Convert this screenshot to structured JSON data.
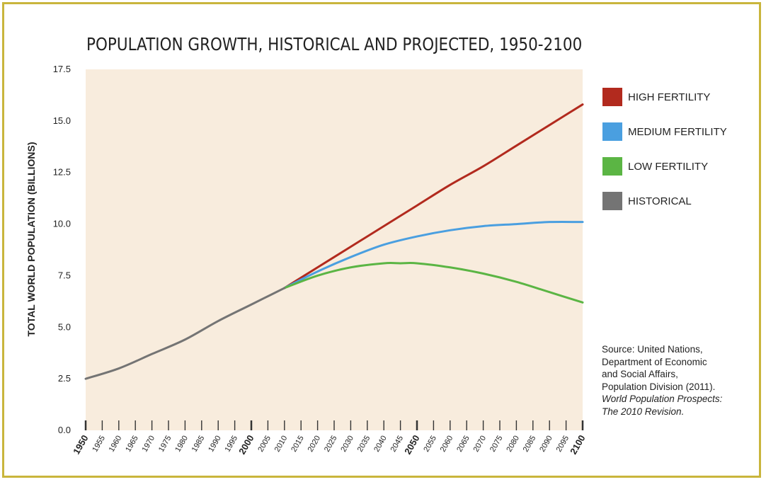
{
  "chart_data": {
    "type": "line",
    "title": "POPULATION GROWTH, HISTORICAL AND PROJECTED, 1950-2100",
    "ylabel": "TOTAL WORLD POPULATION (BILLIONS)",
    "xlabel": "",
    "xlim": [
      1950,
      2100
    ],
    "ylim": [
      0,
      17.5
    ],
    "yticks": [
      "0.0",
      "2.5",
      "5.0",
      "7.5",
      "10.0",
      "12.5",
      "15.0",
      "17.5"
    ],
    "xticks": [
      "1950",
      "1955",
      "1960",
      "1965",
      "1970",
      "1975",
      "1980",
      "1985",
      "1990",
      "1995",
      "2000",
      "2005",
      "2010",
      "2015",
      "2020",
      "2025",
      "2030",
      "2035",
      "2040",
      "2045",
      "2050",
      "2055",
      "2060",
      "2065",
      "2070",
      "2075",
      "2080",
      "2085",
      "2090",
      "2095",
      "2100"
    ],
    "bold_xticks": [
      "1950",
      "2000",
      "2050",
      "2100"
    ],
    "legend_position": "right",
    "background_color": "#f8ecdd",
    "series": [
      {
        "name": "HIGH FERTILITY",
        "color": "#b22a1e",
        "x": [
          2010,
          2020,
          2030,
          2040,
          2050,
          2060,
          2070,
          2080,
          2090,
          2100
        ],
        "values": [
          6.9,
          7.9,
          8.9,
          9.9,
          10.9,
          11.9,
          12.8,
          13.8,
          14.8,
          15.8
        ]
      },
      {
        "name": "MEDIUM FERTILITY",
        "color": "#4a9fe0",
        "x": [
          2010,
          2020,
          2030,
          2040,
          2050,
          2060,
          2070,
          2080,
          2090,
          2100
        ],
        "values": [
          6.9,
          7.7,
          8.4,
          9.0,
          9.4,
          9.7,
          9.9,
          10.0,
          10.1,
          10.1
        ]
      },
      {
        "name": "LOW FERTILITY",
        "color": "#5bb544",
        "x": [
          2010,
          2020,
          2030,
          2040,
          2045,
          2050,
          2060,
          2070,
          2080,
          2090,
          2100
        ],
        "values": [
          6.9,
          7.5,
          7.9,
          8.1,
          8.1,
          8.1,
          7.9,
          7.6,
          7.2,
          6.7,
          6.2
        ]
      },
      {
        "name": "HISTORICAL",
        "color": "#747474",
        "x": [
          1950,
          1960,
          1970,
          1980,
          1990,
          2000,
          2010
        ],
        "values": [
          2.5,
          3.0,
          3.7,
          4.4,
          5.3,
          6.1,
          6.9
        ]
      }
    ]
  },
  "source": {
    "line1": "Source: United Nations,",
    "line2": "Department of Economic",
    "line3": "and Social Affairs,",
    "line4": "Population Division (2011).",
    "line5": "World Population Prospects:",
    "line6": "The 2010 Revision."
  }
}
